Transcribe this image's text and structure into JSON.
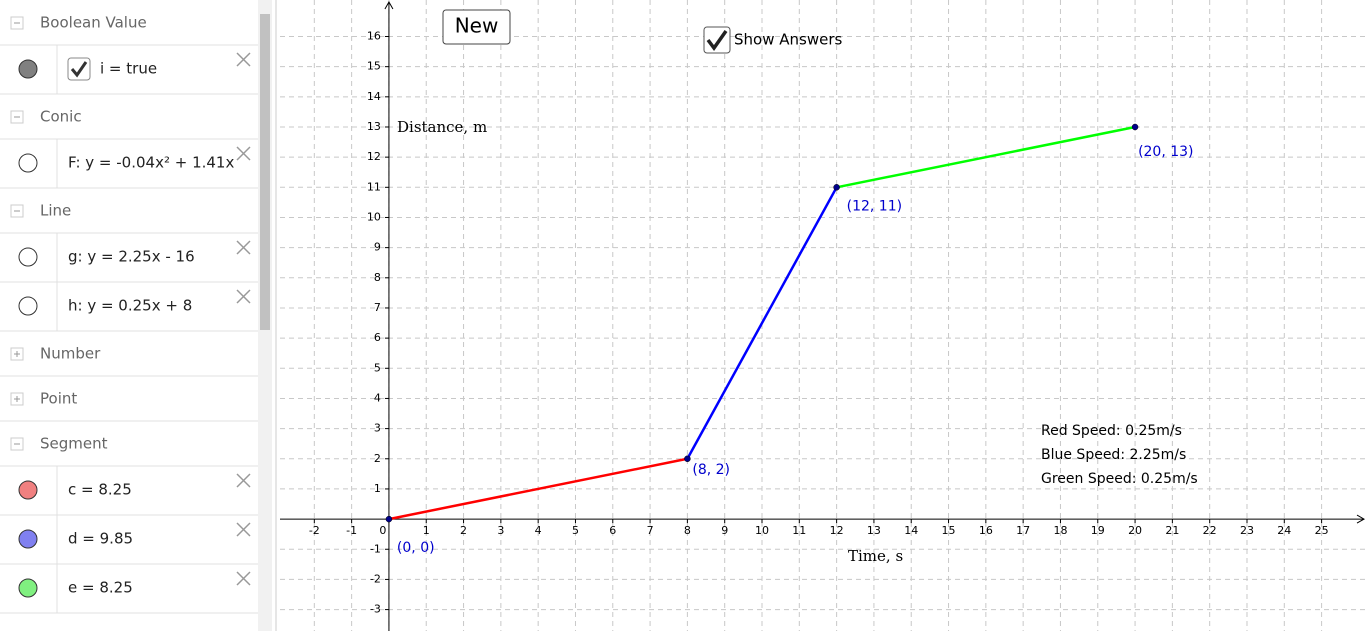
{
  "algebra_view": {
    "groups": [
      {
        "title": "Boolean Value",
        "expanded": true,
        "items": [
          {
            "text": "i = true",
            "color": "#808080",
            "checkbox": true
          }
        ]
      },
      {
        "title": "Conic",
        "expanded": true,
        "items": [
          {
            "text": "F: y = -0.04x² + 1.41x",
            "color": "#ffffff"
          }
        ]
      },
      {
        "title": "Line",
        "expanded": true,
        "items": [
          {
            "text": "g: y = 2.25x - 16",
            "color": "#ffffff"
          },
          {
            "text": "h: y = 0.25x + 8",
            "color": "#ffffff"
          }
        ]
      },
      {
        "title": "Number",
        "expanded": false,
        "items": []
      },
      {
        "title": "Point",
        "expanded": false,
        "items": []
      },
      {
        "title": "Segment",
        "expanded": true,
        "items": [
          {
            "text": "c = 8.25",
            "color": "#f08080"
          },
          {
            "text": "d = 9.85",
            "color": "#8080f0"
          },
          {
            "text": "e = 8.25",
            "color": "#80f080"
          }
        ]
      }
    ]
  },
  "graphics": {
    "button": "New",
    "checkbox_label": "Show Answers",
    "x_label": "Time, s",
    "y_label": "Distance, m",
    "xlim": [
      -2.92,
      26.19
    ],
    "ylim": [
      -3.71,
      17.21
    ],
    "xticks": [
      -2,
      -1,
      0,
      1,
      2,
      3,
      4,
      5,
      6,
      7,
      8,
      9,
      10,
      11,
      12,
      13,
      14,
      15,
      16,
      17,
      18,
      19,
      20,
      21,
      22,
      23,
      24,
      25
    ],
    "yticks": [
      -3,
      -2,
      -1,
      1,
      2,
      3,
      4,
      5,
      6,
      7,
      8,
      9,
      10,
      11,
      12,
      13,
      14,
      15,
      16
    ],
    "grid": true,
    "points": {
      "x": [
        0,
        8,
        12,
        20
      ],
      "y": [
        0,
        2,
        11,
        13
      ],
      "labels": [
        "(0, 0)",
        "(8, 2)",
        "(12, 11)",
        "(20, 13)"
      ],
      "color": "#00008b"
    },
    "segment_colors": [
      "#ff0000",
      "#0000ff",
      "#00ff00"
    ],
    "notes": [
      "Red Speed: 0.25m/s",
      "Blue Speed: 2.25m/s",
      "Green Speed: 0.25m/s"
    ]
  }
}
